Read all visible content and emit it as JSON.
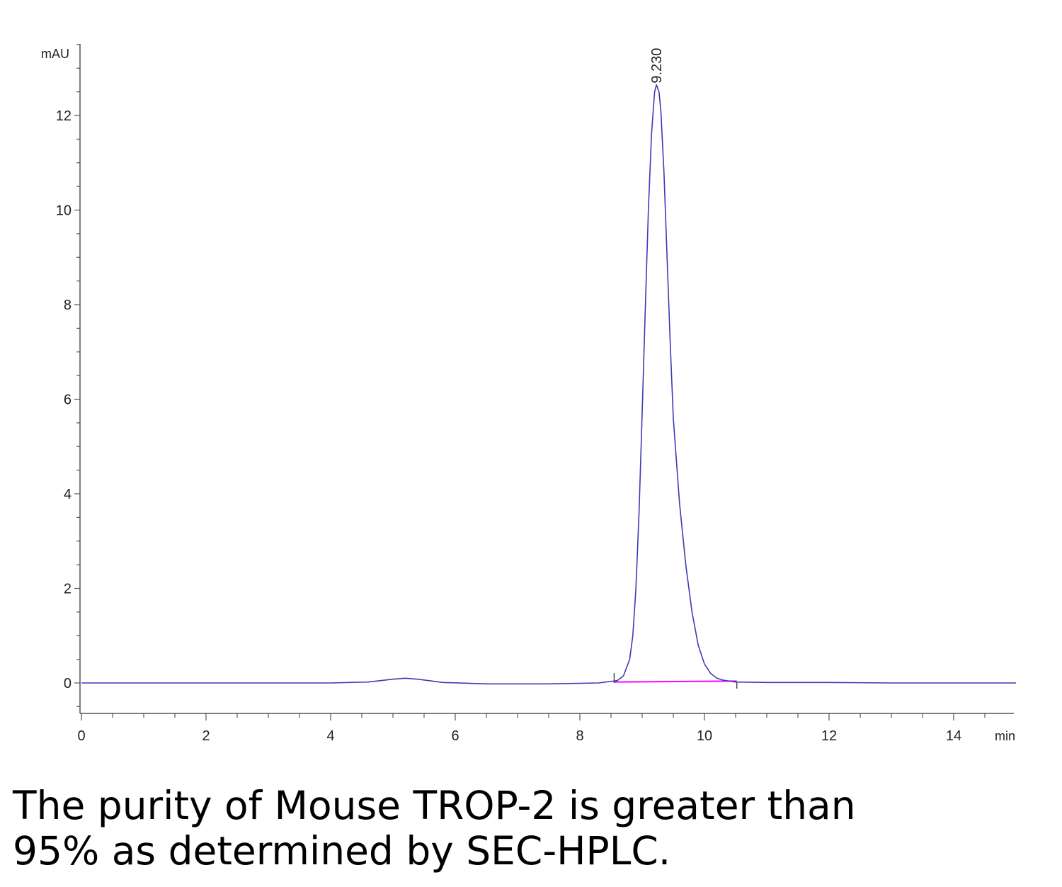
{
  "chart_data": {
    "type": "line",
    "title": "",
    "xlabel": "min",
    "ylabel": "mAU",
    "xlim": [
      0,
      15
    ],
    "ylim": [
      -0.65,
      13.5
    ],
    "x_ticks": [
      0,
      2,
      4,
      6,
      8,
      10,
      12,
      14
    ],
    "y_ticks": [
      0,
      2,
      4,
      6,
      8,
      10,
      12
    ],
    "grid": false,
    "legend": "none",
    "series": [
      {
        "color": "#3b3bb8",
        "x": [
          0,
          1,
          2,
          3,
          4,
          4.6,
          5.0,
          5.2,
          5.4,
          5.8,
          6.5,
          7.5,
          8.3,
          8.6,
          8.7,
          8.8,
          8.85,
          8.9,
          8.95,
          9.0,
          9.05,
          9.1,
          9.15,
          9.2,
          9.23,
          9.27,
          9.3,
          9.35,
          9.4,
          9.45,
          9.5,
          9.6,
          9.7,
          9.8,
          9.9,
          10.0,
          10.1,
          10.2,
          10.3,
          10.5,
          11,
          12,
          13,
          14,
          15
        ],
        "y": [
          0.0,
          0.0,
          0.0,
          0.0,
          0.0,
          0.02,
          0.08,
          0.1,
          0.08,
          0.01,
          -0.02,
          -0.02,
          0.0,
          0.05,
          0.15,
          0.5,
          1.0,
          2.0,
          3.6,
          5.7,
          7.9,
          10.0,
          11.6,
          12.5,
          12.65,
          12.5,
          12.1,
          10.8,
          9.0,
          7.2,
          5.6,
          3.8,
          2.5,
          1.5,
          0.8,
          0.4,
          0.2,
          0.1,
          0.06,
          0.02,
          0.01,
          0.01,
          0.0,
          0.0,
          0.0
        ]
      }
    ],
    "baseline": {
      "color": "#ff00ff",
      "x": [
        8.55,
        10.52
      ],
      "y": [
        0.02,
        0.04
      ]
    },
    "integration_marks_x": [
      8.55,
      10.52
    ],
    "annotations": [
      {
        "text": "9.230",
        "x": 9.23,
        "y": 12.65
      }
    ]
  },
  "caption": {
    "line1": "The purity of Mouse TROP-2 is greater than",
    "line2": "95% as determined by SEC-HPLC."
  }
}
